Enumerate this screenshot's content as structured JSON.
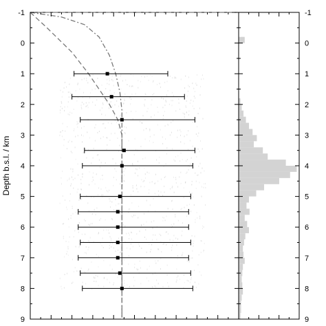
{
  "chart_data": [
    {
      "type": "scatter",
      "title": "",
      "ylabel": "Depth b.s.l. / km",
      "xlabel": "",
      "ylim": [
        -1,
        9
      ],
      "y_reversed": true,
      "xlim": [
        0,
        1
      ],
      "y_ticks": [
        "-1",
        "0",
        "1",
        "2",
        "3",
        "4",
        "5",
        "6",
        "7",
        "8",
        "9"
      ],
      "grid": false,
      "series": [
        {
          "kind": "points-with-horizontal-error-bars",
          "color": "#000000",
          "points": [
            {
              "depth": 1.0,
              "x": 0.37,
              "xmin": 0.21,
              "xmax": 0.66
            },
            {
              "depth": 1.75,
              "x": 0.39,
              "xmin": 0.2,
              "xmax": 0.74
            },
            {
              "depth": 2.5,
              "x": 0.44,
              "xmin": 0.24,
              "xmax": 0.79
            },
            {
              "depth": 3.5,
              "x": 0.45,
              "xmin": 0.26,
              "xmax": 0.79
            },
            {
              "depth": 4.0,
              "x": 0.44,
              "xmin": 0.25,
              "xmax": 0.78
            },
            {
              "depth": 5.0,
              "x": 0.43,
              "xmin": 0.24,
              "xmax": 0.77
            },
            {
              "depth": 5.5,
              "x": 0.42,
              "xmin": 0.23,
              "xmax": 0.76
            },
            {
              "depth": 6.0,
              "x": 0.42,
              "xmin": 0.23,
              "xmax": 0.76
            },
            {
              "depth": 6.5,
              "x": 0.42,
              "xmin": 0.24,
              "xmax": 0.77
            },
            {
              "depth": 7.0,
              "x": 0.42,
              "xmin": 0.23,
              "xmax": 0.76
            },
            {
              "depth": 7.5,
              "x": 0.43,
              "xmin": 0.24,
              "xmax": 0.77
            },
            {
              "depth": 8.0,
              "x": 0.44,
              "xmin": 0.25,
              "xmax": 0.78
            }
          ]
        },
        {
          "kind": "line",
          "style": "dashed",
          "color": "#777777",
          "points": [
            [
              0.0,
              -1.0
            ],
            [
              0.99,
              -1.0
            ],
            [
              0.99,
              -1.0
            ]
          ]
        },
        {
          "kind": "line",
          "style": "dashed",
          "color": "#777777",
          "points": [
            [
              0.0,
              -1.0
            ],
            [
              0.08,
              -0.5
            ],
            [
              0.2,
              0.3
            ],
            [
              0.28,
              1.0
            ],
            [
              0.34,
              1.6
            ],
            [
              0.38,
              2.0
            ],
            [
              0.42,
              2.5
            ],
            [
              0.44,
              3.0
            ],
            [
              0.44,
              3.5
            ],
            [
              0.44,
              9.0
            ]
          ]
        },
        {
          "kind": "line",
          "style": "dash-dot",
          "color": "#777777",
          "points": [
            [
              0.0,
              -1.0
            ],
            [
              0.15,
              -0.85
            ],
            [
              0.26,
              -0.6
            ],
            [
              0.33,
              -0.2
            ],
            [
              0.38,
              0.4
            ],
            [
              0.41,
              1.0
            ],
            [
              0.43,
              1.6
            ],
            [
              0.44,
              2.2
            ],
            [
              0.44,
              3.0
            ],
            [
              0.44,
              9.0
            ]
          ]
        }
      ]
    },
    {
      "type": "bar",
      "orientation": "horizontal",
      "color": "#d3d3d3",
      "ylim": [
        -1,
        9
      ],
      "y_reversed": true,
      "y_ticks": [
        "-1",
        "0",
        "1",
        "2",
        "3",
        "4",
        "5",
        "6",
        "7",
        "8",
        "9"
      ],
      "bin_width": 0.2,
      "bins": [
        {
          "depth": -0.1,
          "value": 0.1
        },
        {
          "depth": 1.9,
          "value": 0.03
        },
        {
          "depth": 2.1,
          "value": 0.05
        },
        {
          "depth": 2.3,
          "value": 0.08
        },
        {
          "depth": 2.5,
          "value": 0.12
        },
        {
          "depth": 2.7,
          "value": 0.17
        },
        {
          "depth": 2.9,
          "value": 0.23
        },
        {
          "depth": 3.1,
          "value": 0.3
        },
        {
          "depth": 3.3,
          "value": 0.25
        },
        {
          "depth": 3.5,
          "value": 0.4
        },
        {
          "depth": 3.7,
          "value": 0.48
        },
        {
          "depth": 3.9,
          "value": 0.78
        },
        {
          "depth": 4.1,
          "value": 0.96
        },
        {
          "depth": 4.3,
          "value": 0.85
        },
        {
          "depth": 4.5,
          "value": 0.67
        },
        {
          "depth": 4.7,
          "value": 0.42
        },
        {
          "depth": 4.9,
          "value": 0.29
        },
        {
          "depth": 5.1,
          "value": 0.17
        },
        {
          "depth": 5.3,
          "value": 0.13
        },
        {
          "depth": 5.5,
          "value": 0.18
        },
        {
          "depth": 5.7,
          "value": 0.1
        },
        {
          "depth": 5.9,
          "value": 0.14
        },
        {
          "depth": 6.1,
          "value": 0.17
        },
        {
          "depth": 6.3,
          "value": 0.11
        },
        {
          "depth": 6.5,
          "value": 0.09
        },
        {
          "depth": 6.7,
          "value": 0.07
        },
        {
          "depth": 6.9,
          "value": 0.08
        },
        {
          "depth": 7.1,
          "value": 0.1
        },
        {
          "depth": 7.3,
          "value": 0.07
        },
        {
          "depth": 7.5,
          "value": 0.06
        },
        {
          "depth": 7.7,
          "value": 0.05
        },
        {
          "depth": 7.9,
          "value": 0.06
        },
        {
          "depth": 8.1,
          "value": 0.07
        },
        {
          "depth": 8.3,
          "value": 0.05
        },
        {
          "depth": 8.5,
          "value": 0.04
        },
        {
          "depth": 8.7,
          "value": 0.04
        },
        {
          "depth": 8.9,
          "value": 0.03
        }
      ],
      "xmax": 1.0
    }
  ]
}
